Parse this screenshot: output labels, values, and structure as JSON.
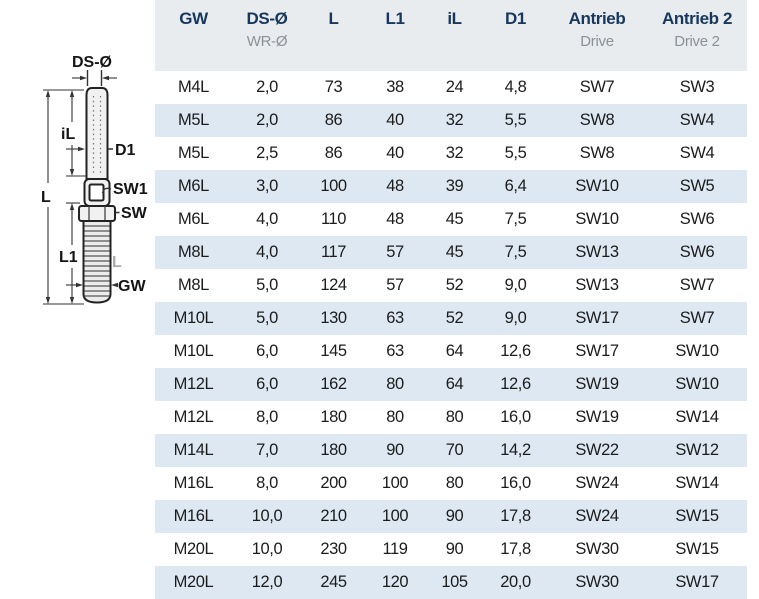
{
  "diagram": {
    "labels": {
      "ds": "DS-Ø",
      "il": "iL",
      "d1": "D1",
      "sw1": "SW1",
      "sw": "SW",
      "l": "L",
      "l1": "L1",
      "l_thread": "L",
      "gw": "GW"
    }
  },
  "table": {
    "columns": [
      {
        "label": "GW",
        "sub": ""
      },
      {
        "label": "DS-Ø",
        "sub": "WR-Ø"
      },
      {
        "label": "L",
        "sub": ""
      },
      {
        "label": "L1",
        "sub": ""
      },
      {
        "label": "iL",
        "sub": ""
      },
      {
        "label": "D1",
        "sub": ""
      },
      {
        "label": "Antrieb",
        "sub": "Drive"
      },
      {
        "label": "Antrieb 2",
        "sub": "Drive 2"
      }
    ],
    "rows": [
      [
        "M4L",
        "2,0",
        "73",
        "38",
        "24",
        "4,8",
        "SW7",
        "SW3"
      ],
      [
        "M5L",
        "2,0",
        "86",
        "40",
        "32",
        "5,5",
        "SW8",
        "SW4"
      ],
      [
        "M5L",
        "2,5",
        "86",
        "40",
        "32",
        "5,5",
        "SW8",
        "SW4"
      ],
      [
        "M6L",
        "3,0",
        "100",
        "48",
        "39",
        "6,4",
        "SW10",
        "SW5"
      ],
      [
        "M6L",
        "4,0",
        "110",
        "48",
        "45",
        "7,5",
        "SW10",
        "SW6"
      ],
      [
        "M8L",
        "4,0",
        "117",
        "57",
        "45",
        "7,5",
        "SW13",
        "SW6"
      ],
      [
        "M8L",
        "5,0",
        "124",
        "57",
        "52",
        "9,0",
        "SW13",
        "SW7"
      ],
      [
        "M10L",
        "5,0",
        "130",
        "63",
        "52",
        "9,0",
        "SW17",
        "SW7"
      ],
      [
        "M10L",
        "6,0",
        "145",
        "63",
        "64",
        "12,6",
        "SW17",
        "SW10"
      ],
      [
        "M12L",
        "6,0",
        "162",
        "80",
        "64",
        "12,6",
        "SW19",
        "SW10"
      ],
      [
        "M12L",
        "8,0",
        "180",
        "80",
        "80",
        "16,0",
        "SW19",
        "SW14"
      ],
      [
        "M14L",
        "7,0",
        "180",
        "90",
        "70",
        "14,2",
        "SW22",
        "SW12"
      ],
      [
        "M16L",
        "8,0",
        "200",
        "100",
        "80",
        "16,0",
        "SW24",
        "SW14"
      ],
      [
        "M16L",
        "10,0",
        "210",
        "100",
        "90",
        "17,8",
        "SW24",
        "SW15"
      ],
      [
        "M20L",
        "10,0",
        "230",
        "119",
        "90",
        "17,8",
        "SW30",
        "SW15"
      ],
      [
        "M20L",
        "12,0",
        "245",
        "120",
        "105",
        "20,0",
        "SW30",
        "SW17"
      ]
    ]
  },
  "colors": {
    "header_bg": "#e8ecef",
    "stripe_bg": "#dde8f2",
    "header_text": "#17375d",
    "sub_text": "#8c9196",
    "body_text": "#1c1c1c"
  }
}
